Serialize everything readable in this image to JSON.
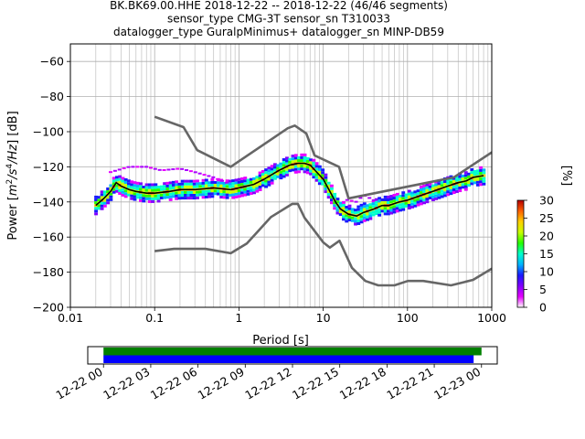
{
  "chart_data": [
    {
      "type": "heatmap",
      "title_lines": [
        "BK.BK69.00.HHE   2018-12-22 -- 2018-12-22  (46/46 segments)",
        "sensor_type CMG-3T sensor_sn T310033",
        "datalogger_type GuralpMinimus+ datalogger_sn MINP-DB59"
      ],
      "xlabel": "Period [s]",
      "ylabel_parts": [
        "Power [",
        "m",
        "2",
        "/s",
        "4",
        "/Hz",
        "] [dB]"
      ],
      "x_scale": "log",
      "xlim": [
        0.01,
        1000
      ],
      "ylim": [
        -200,
        -50
      ],
      "grid": true,
      "x_ticks": [
        {
          "v": 0.01,
          "label": "0.01"
        },
        {
          "v": 0.1,
          "label": "0.1"
        },
        {
          "v": 1,
          "label": "1"
        },
        {
          "v": 10,
          "label": "10"
        },
        {
          "v": 100,
          "label": "100"
        },
        {
          "v": 1000,
          "label": "1000"
        }
      ],
      "y_ticks": [
        {
          "v": -200,
          "label": "−200"
        },
        {
          "v": -180,
          "label": "−180"
        },
        {
          "v": -160,
          "label": "−160"
        },
        {
          "v": -140,
          "label": "−140"
        },
        {
          "v": -120,
          "label": "−120"
        },
        {
          "v": -100,
          "label": "−100"
        },
        {
          "v": -80,
          "label": "−80"
        },
        {
          "v": -60,
          "label": "−60"
        }
      ],
      "noise_models": [
        {
          "name": "high",
          "color": "#666666",
          "points": [
            [
              0.1,
              -91.5
            ],
            [
              0.22,
              -97.4
            ],
            [
              0.32,
              -110.5
            ],
            [
              0.8,
              -120
            ],
            [
              3.8,
              -98
            ],
            [
              4.6,
              -96.5
            ],
            [
              6.3,
              -101
            ],
            [
              7.9,
              -113.5
            ],
            [
              15.4,
              -120
            ],
            [
              20,
              -138
            ],
            [
              354.8,
              -126
            ],
            [
              10000,
              -80
            ]
          ]
        },
        {
          "name": "low",
          "color": "#666666",
          "points": [
            [
              0.1,
              -168
            ],
            [
              0.17,
              -166.7
            ],
            [
              0.4,
              -166.7
            ],
            [
              0.8,
              -169.2
            ],
            [
              1.24,
              -163.7
            ],
            [
              2.4,
              -148.6
            ],
            [
              4.3,
              -141.1
            ],
            [
              5,
              -141.1
            ],
            [
              6,
              -149
            ],
            [
              10,
              -163
            ],
            [
              12,
              -166
            ],
            [
              15.6,
              -162.1
            ],
            [
              21.9,
              -177.5
            ],
            [
              31.6,
              -185
            ],
            [
              45,
              -187.5
            ],
            [
              70,
              -187.5
            ],
            [
              101,
              -185
            ],
            [
              154,
              -185
            ],
            [
              328,
              -187.5
            ],
            [
              600,
              -184.4
            ],
            [
              1000,
              -178
            ]
          ]
        }
      ],
      "psd_median": {
        "name": "mean",
        "color": "#000000",
        "points": [
          [
            0.02,
            -142
          ],
          [
            0.025,
            -138
          ],
          [
            0.03,
            -134
          ],
          [
            0.035,
            -129
          ],
          [
            0.04,
            -131
          ],
          [
            0.05,
            -133
          ],
          [
            0.06,
            -134
          ],
          [
            0.08,
            -135
          ],
          [
            0.1,
            -135
          ],
          [
            0.15,
            -134
          ],
          [
            0.2,
            -133
          ],
          [
            0.3,
            -133
          ],
          [
            0.5,
            -132
          ],
          [
            0.8,
            -133
          ],
          [
            1,
            -132
          ],
          [
            1.5,
            -130
          ],
          [
            2,
            -127
          ],
          [
            3,
            -122
          ],
          [
            4,
            -119
          ],
          [
            5,
            -118
          ],
          [
            6,
            -118
          ],
          [
            7,
            -119
          ],
          [
            8,
            -122
          ],
          [
            10,
            -127
          ],
          [
            12,
            -134
          ],
          [
            14,
            -140
          ],
          [
            16,
            -144
          ],
          [
            20,
            -147
          ],
          [
            25,
            -148
          ],
          [
            30,
            -146
          ],
          [
            40,
            -144
          ],
          [
            50,
            -142
          ],
          [
            60,
            -142
          ],
          [
            80,
            -140
          ],
          [
            100,
            -139
          ],
          [
            150,
            -136
          ],
          [
            200,
            -134
          ],
          [
            300,
            -131
          ],
          [
            400,
            -129
          ],
          [
            500,
            -128
          ],
          [
            600,
            -126
          ],
          [
            800,
            -125
          ]
        ]
      },
      "psd_outlier_band": {
        "color": "#aa00ff",
        "points": [
          [
            0.03,
            -123
          ],
          [
            0.05,
            -120
          ],
          [
            0.08,
            -120
          ],
          [
            0.12,
            -122
          ],
          [
            0.2,
            -121
          ],
          [
            0.3,
            -123
          ],
          [
            0.5,
            -126
          ],
          [
            0.8,
            -130
          ],
          [
            20,
            -139
          ],
          [
            25,
            -140
          ],
          [
            30,
            -136
          ],
          [
            40,
            -139
          ]
        ]
      },
      "colorbar": {
        "label": "[%]",
        "range": [
          0,
          30
        ],
        "ticks": [
          "0",
          "5",
          "10",
          "15",
          "20",
          "25",
          "30"
        ],
        "colors": [
          "#ffffff",
          "#e600ff",
          "#8000ff",
          "#1a1aff",
          "#00b3ff",
          "#00ffcc",
          "#26ff00",
          "#c8ff00",
          "#ffd000",
          "#ff6000",
          "#b40000"
        ]
      }
    },
    {
      "type": "timeline",
      "x_tick_labels": [
        "12-22 00",
        "12-22 03",
        "12-22 06",
        "12-22 09",
        "12-22 12",
        "12-22 15",
        "12-22 18",
        "12-22 21",
        "12-23 00"
      ],
      "x_range_hours": [
        -1,
        25
      ],
      "bars": [
        {
          "name": "data",
          "color": "#008000",
          "start_h": 0,
          "end_h": 24.0
        },
        {
          "name": "psd",
          "color": "#0000ff",
          "start_h": 0,
          "end_h": 23.5
        }
      ]
    }
  ]
}
